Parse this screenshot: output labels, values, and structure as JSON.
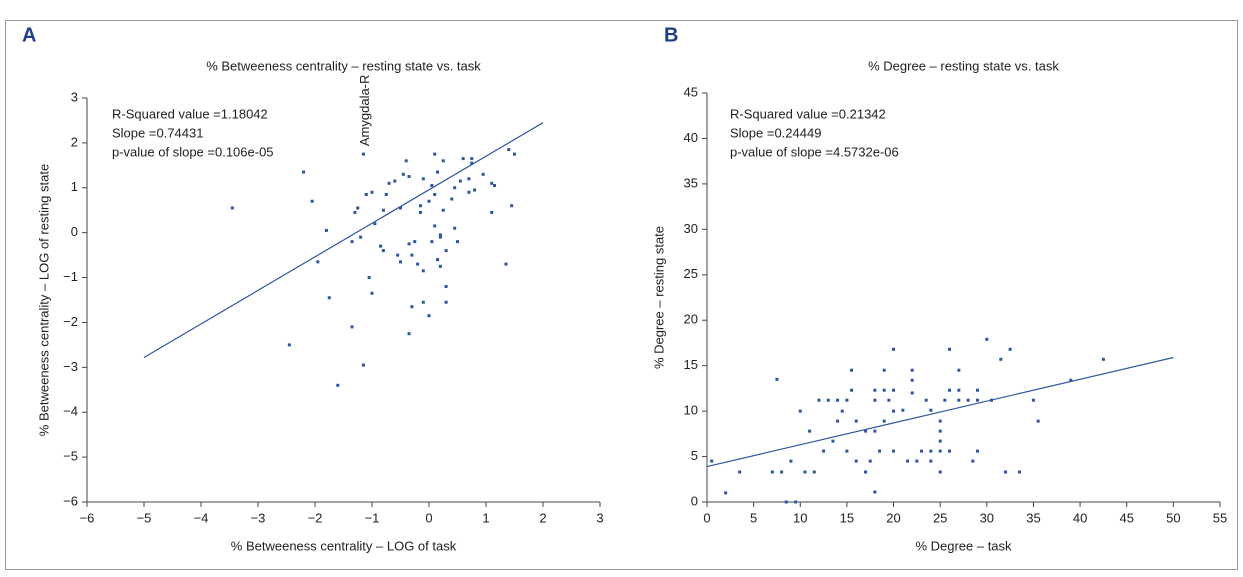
{
  "chart_data": [
    {
      "type": "scatter",
      "panel_label": "A",
      "title": "% Betweeness centrality – resting state vs. task",
      "xlabel": "% Betweeness centrality – LOG of  task",
      "ylabel": "% Betweeness centrality – LOG of resting state",
      "annotations": [
        "R-Squared value =1.18042",
        "Slope =0.74431",
        "p-value of slope =0.106e-05"
      ],
      "point_label": {
        "text": "Amygdala-R",
        "x": -1.15,
        "y": 1.75
      },
      "color": "#2e55a4",
      "xlim": [
        -6,
        3
      ],
      "ylim": [
        -6,
        3
      ],
      "xticks": [
        {
          "value": -6,
          "label": "−6"
        },
        {
          "value": -5,
          "label": "−5"
        },
        {
          "value": -4,
          "label": "−4"
        },
        {
          "value": -3,
          "label": "−3"
        },
        {
          "value": -2,
          "label": "−2"
        },
        {
          "value": -1,
          "label": "−1"
        },
        0,
        1,
        2,
        3
      ],
      "yticks": [
        {
          "value": -6,
          "label": "−6"
        },
        {
          "value": -5,
          "label": "−5"
        },
        {
          "value": -4,
          "label": "−4"
        },
        {
          "value": -3,
          "label": "−3"
        },
        {
          "value": -2,
          "label": "−2"
        },
        {
          "value": -1,
          "label": "−1"
        },
        0,
        1,
        2,
        3
      ],
      "x": [
        -3.45,
        -2.45,
        -2.2,
        -2.05,
        -1.95,
        -1.8,
        -1.75,
        -1.6,
        -1.35,
        -1.3,
        -1.25,
        -1.2,
        -1.35,
        -1.15,
        -1.15,
        -1.1,
        -1.05,
        -1.0,
        -1.0,
        -0.95,
        -0.85,
        -0.8,
        -0.8,
        -0.75,
        -0.7,
        -0.6,
        -0.55,
        -0.5,
        -0.5,
        -0.45,
        -0.4,
        -0.35,
        -0.35,
        -0.3,
        -0.35,
        -0.3,
        -0.25,
        -0.2,
        -0.15,
        -0.15,
        -0.1,
        -0.1,
        -0.1,
        0.0,
        0.0,
        0.05,
        0.05,
        0.1,
        0.1,
        0.1,
        0.15,
        0.15,
        0.2,
        0.2,
        0.2,
        0.25,
        0.25,
        0.3,
        0.3,
        0.3,
        0.4,
        0.45,
        0.45,
        0.5,
        0.55,
        0.6,
        0.7,
        0.75,
        0.75,
        0.7,
        0.8,
        0.95,
        1.1,
        1.1,
        1.15,
        1.35,
        1.4,
        1.45,
        1.5
      ],
      "values": [
        0.55,
        -2.5,
        1.35,
        0.7,
        -0.65,
        0.05,
        -1.45,
        -3.4,
        -2.1,
        0.45,
        0.55,
        -0.1,
        -0.2,
        1.75,
        -2.95,
        0.85,
        -1.0,
        -1.35,
        0.9,
        0.2,
        -0.3,
        0.5,
        -0.4,
        0.85,
        1.1,
        1.15,
        -0.5,
        0.55,
        -0.65,
        1.3,
        1.6,
        1.25,
        -0.25,
        -0.5,
        -2.25,
        -1.65,
        -0.2,
        -0.7,
        0.45,
        0.6,
        1.2,
        -0.85,
        -1.55,
        0.7,
        -1.85,
        -0.2,
        1.05,
        1.75,
        0.15,
        0.85,
        -0.6,
        1.35,
        -0.1,
        -0.05,
        -0.75,
        0.5,
        1.6,
        -0.4,
        -1.2,
        -1.55,
        0.75,
        1.0,
        0.1,
        -0.2,
        1.15,
        1.65,
        1.2,
        1.65,
        1.55,
        0.9,
        0.95,
        1.3,
        1.1,
        0.45,
        1.05,
        -0.7,
        1.85,
        0.6,
        1.75
      ],
      "trendline": {
        "x": [
          -5,
          2
        ],
        "values": [
          -2.78,
          2.45
        ]
      }
    },
    {
      "type": "scatter",
      "panel_label": "B",
      "title": "% Degree – resting state vs. task",
      "xlabel": "% Degree – task",
      "ylabel": "% Degree – resting state",
      "annotations": [
        "R-Squared value =0.21342",
        "Slope =0.24449",
        "p-value of slope =4.5732e-06"
      ],
      "color": "#2e55a4",
      "xlim": [
        0,
        55
      ],
      "ylim": [
        0,
        45
      ],
      "xticks": [
        0,
        5,
        10,
        15,
        20,
        25,
        30,
        35,
        40,
        45,
        50,
        55
      ],
      "yticks": [
        0,
        5,
        10,
        15,
        20,
        25,
        30,
        35,
        40,
        45
      ],
      "x": [
        0.5,
        2,
        3.5,
        7,
        7.5,
        8,
        8.5,
        9,
        9.5,
        10,
        10.5,
        11,
        11.5,
        12,
        12.5,
        13,
        13.5,
        14,
        14,
        14.5,
        15,
        15,
        15.5,
        15.5,
        16,
        16,
        17,
        17,
        17.5,
        18,
        18,
        18,
        18,
        18.5,
        19,
        19,
        19.5,
        19,
        20,
        20,
        20,
        21,
        21.5,
        22,
        22,
        22.5,
        23,
        23.5,
        24,
        24,
        25,
        25,
        25,
        25,
        25,
        25.5,
        26,
        26,
        26,
        27,
        27,
        27,
        28,
        28.5,
        29,
        29,
        29,
        30,
        30.5,
        31.5,
        32,
        32.5,
        33.5,
        35,
        35.5,
        39,
        42.5,
        22,
        24,
        20
      ],
      "values": [
        4.5,
        1,
        3.3,
        3.3,
        13.5,
        3.3,
        0,
        4.5,
        0,
        10,
        3.3,
        7.8,
        3.3,
        11.2,
        5.6,
        11.2,
        6.7,
        11.2,
        8.9,
        10,
        5.6,
        11.2,
        12.3,
        14.5,
        4.5,
        8.9,
        7.8,
        3.3,
        4.5,
        7.8,
        11.2,
        12.3,
        1.1,
        5.6,
        12.3,
        14.5,
        11.2,
        8.9,
        12.3,
        16.8,
        10,
        10.1,
        4.5,
        13.4,
        14.5,
        4.5,
        5.6,
        11.2,
        10.1,
        5.6,
        8.9,
        7.8,
        6.7,
        3.3,
        5.6,
        11.2,
        16.8,
        12.3,
        5.6,
        11.2,
        12.3,
        14.5,
        11.2,
        4.5,
        5.6,
        12.3,
        11.2,
        17.9,
        11.2,
        15.7,
        3.3,
        16.8,
        3.3,
        11.2,
        8.9,
        13.4,
        15.7,
        12,
        4.5,
        5.6
      ],
      "trendline": {
        "x": [
          0,
          50
        ],
        "values": [
          3.9,
          15.9
        ]
      }
    }
  ]
}
